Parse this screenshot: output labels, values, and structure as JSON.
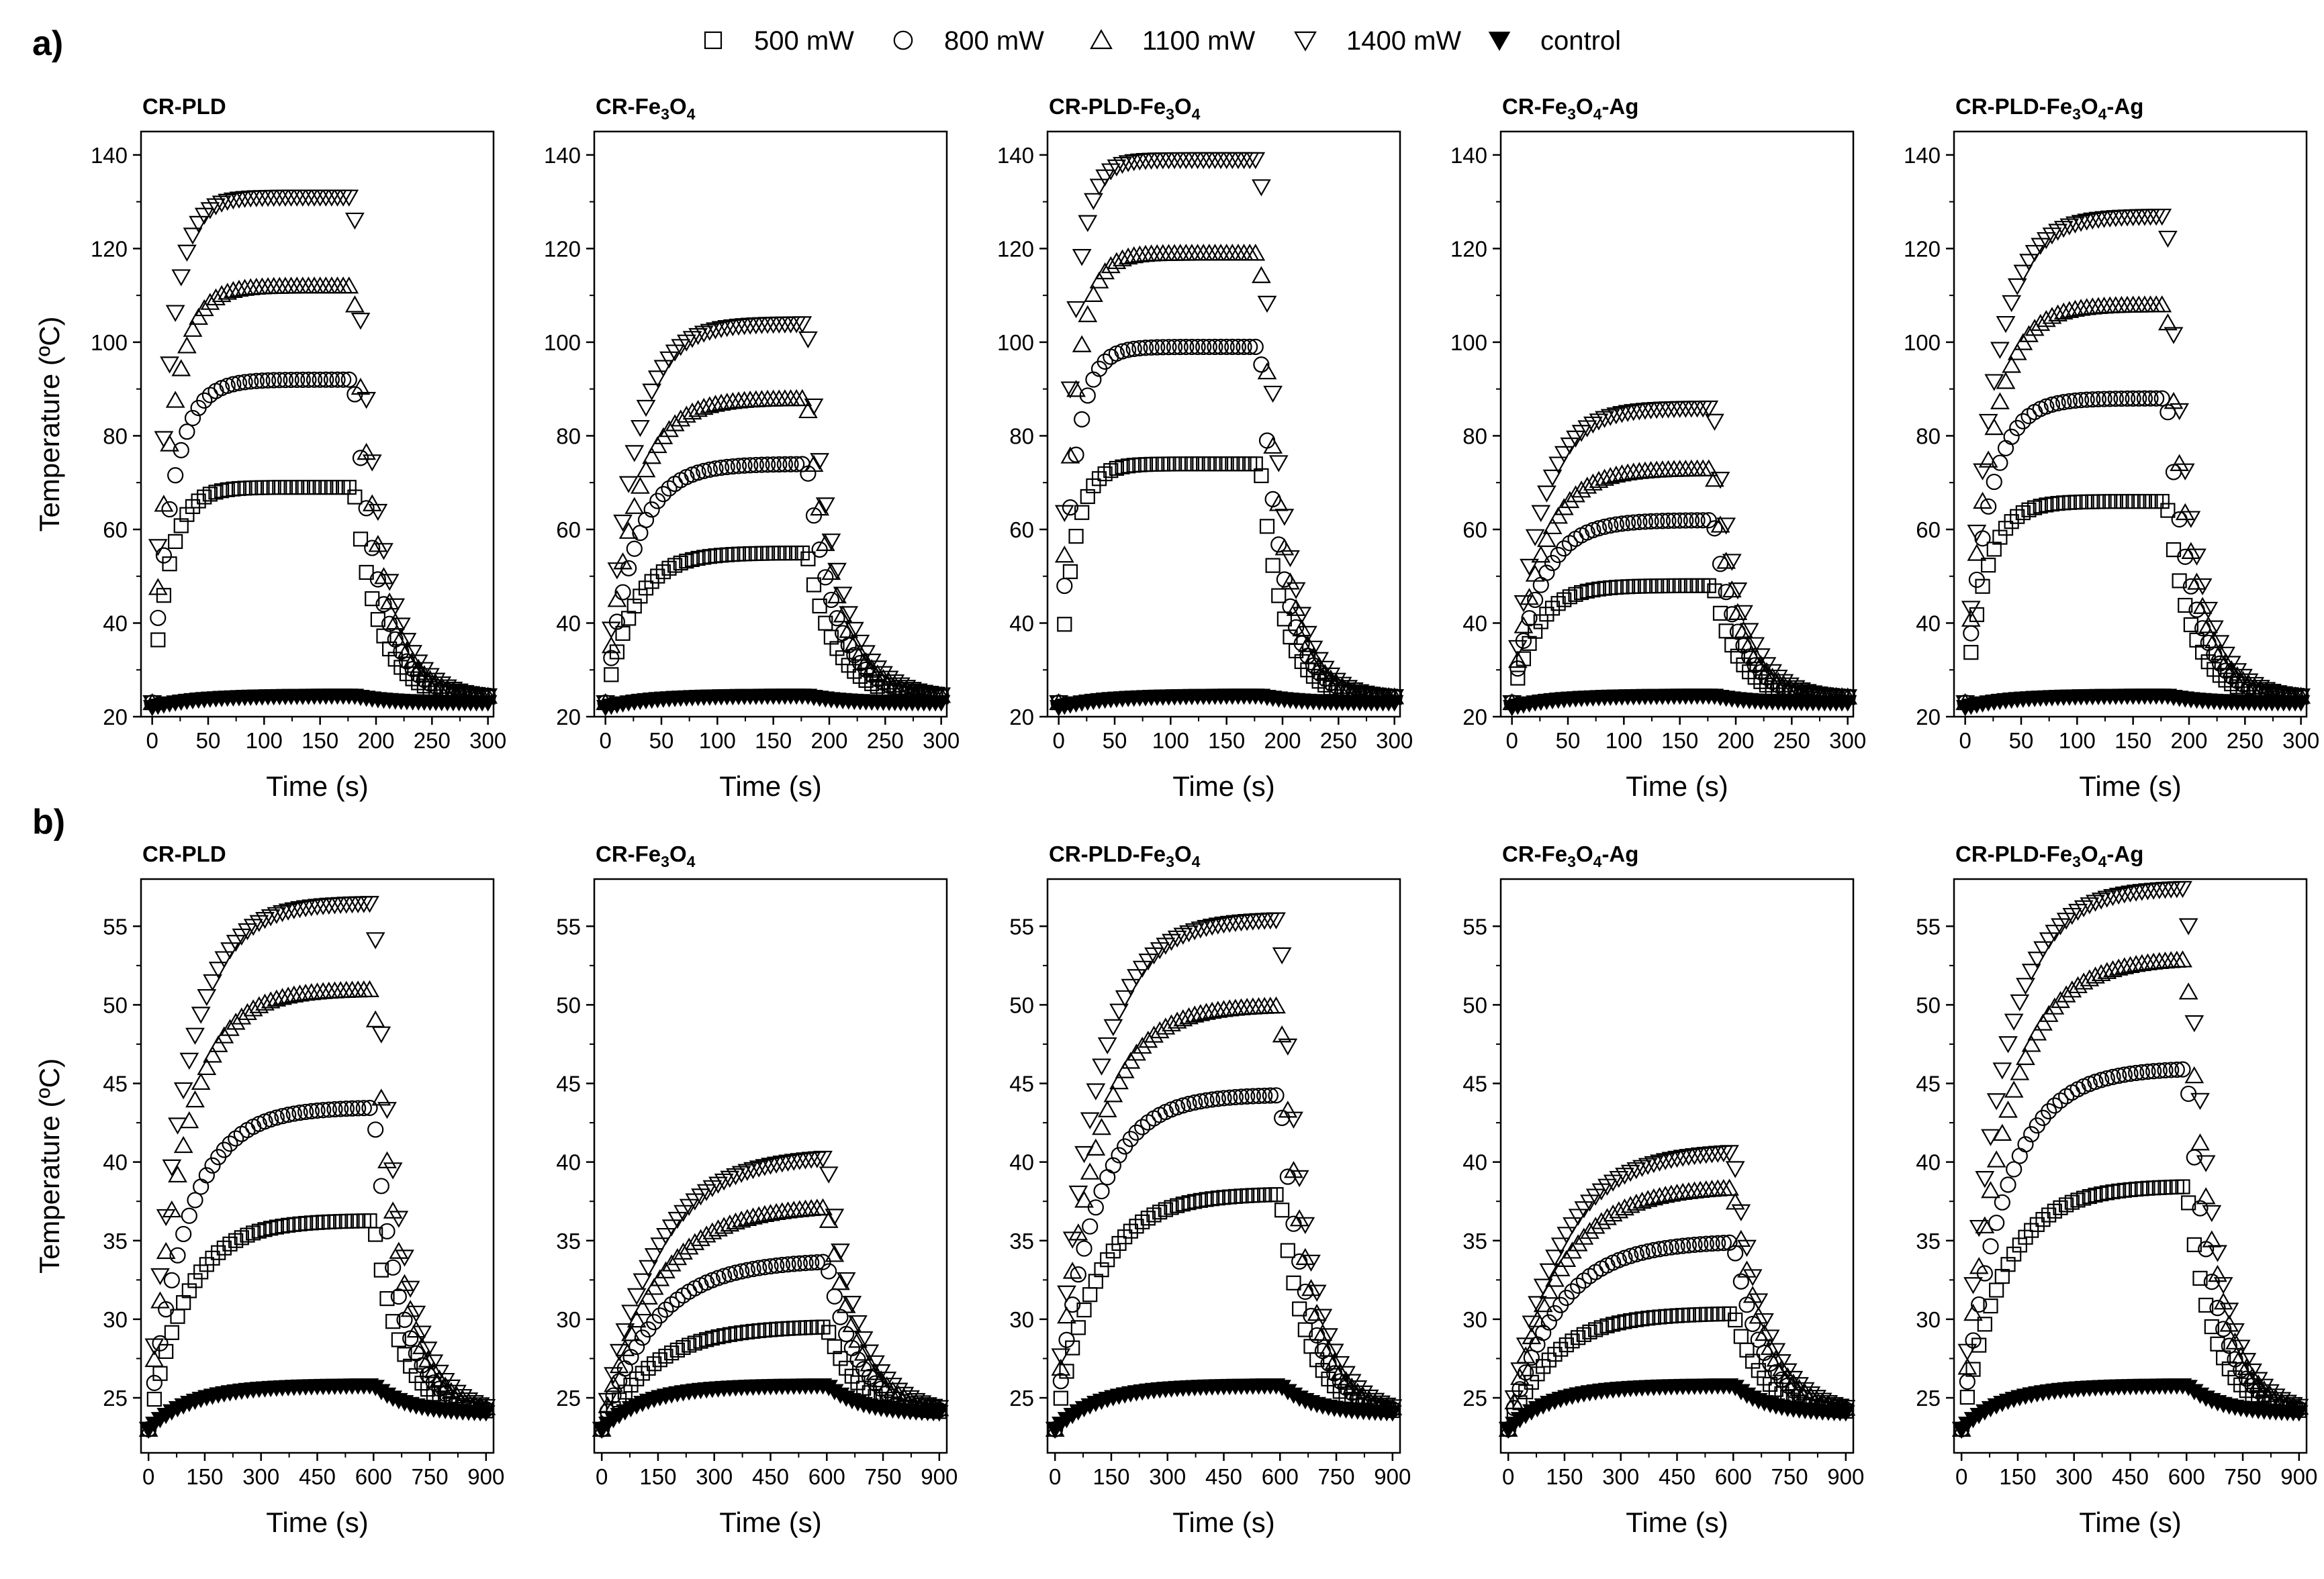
{
  "figure": {
    "panel_labels": [
      "a)",
      "b)"
    ],
    "legend": [
      {
        "symbol": "square-open",
        "label": "500 mW"
      },
      {
        "symbol": "circle-open",
        "label": "800 mW"
      },
      {
        "symbol": "triangle-up-open",
        "label": "1100 mW"
      },
      {
        "symbol": "triangle-down-open",
        "label": "1400 mW"
      },
      {
        "symbol": "triangle-down-filled",
        "label": "control"
      }
    ],
    "marker_color": "#000000",
    "background": "#ffffff"
  },
  "chart_data": [
    {
      "type": "scatter",
      "row": "a",
      "title": "CR-PLD",
      "title_sub": {
        "base": "CR-PLD",
        "parts": []
      },
      "xlabel": "Time (s)",
      "ylabel": "Temperature (ºC)",
      "xlim": [
        -10,
        305
      ],
      "ylim": [
        20,
        145
      ],
      "xticks": [
        0,
        50,
        100,
        150,
        200,
        250,
        300
      ],
      "yticks": [
        20,
        40,
        60,
        80,
        100,
        120,
        140
      ],
      "heating_end": 180,
      "t_max": 300,
      "series": [
        {
          "name": "500 mW",
          "start": 23,
          "plateau": 69,
          "tau": 15,
          "cool_tau": 22
        },
        {
          "name": "800 mW",
          "start": 23,
          "plateau": 92,
          "tau": 17,
          "cool_tau": 22
        },
        {
          "name": "1100 mW",
          "start": 23,
          "plateau": 112,
          "tau": 16,
          "cool_tau": 22
        },
        {
          "name": "1400 mW",
          "start": 23,
          "plateau": 131,
          "tau": 14,
          "cool_tau": 22
        },
        {
          "name": "control",
          "start": 22,
          "plateau": 24.5,
          "tau": 40,
          "cool_tau": 30
        }
      ]
    },
    {
      "type": "scatter",
      "row": "a",
      "title": "CR-Fe3O4",
      "title_sub": {
        "base": "CR-Fe",
        "parts": [
          {
            "sub": "3"
          },
          {
            "text": "O"
          },
          {
            "sub": "4"
          }
        ]
      },
      "xlabel": "Time (s)",
      "ylabel": "",
      "xlim": [
        -10,
        305
      ],
      "ylim": [
        20,
        145
      ],
      "xticks": [
        0,
        50,
        100,
        150,
        200,
        250,
        300
      ],
      "yticks": [
        20,
        40,
        60,
        80,
        100,
        120,
        140
      ],
      "heating_end": 180,
      "t_max": 300,
      "series": [
        {
          "name": "500 mW",
          "start": 23,
          "plateau": 55,
          "tau": 25,
          "cool_tau": 25
        },
        {
          "name": "800 mW",
          "start": 23,
          "plateau": 74,
          "tau": 25,
          "cool_tau": 25
        },
        {
          "name": "1100 mW",
          "start": 23,
          "plateau": 88,
          "tau": 25,
          "cool_tau": 25
        },
        {
          "name": "1400 mW",
          "start": 23,
          "plateau": 104,
          "tau": 24,
          "cool_tau": 25
        },
        {
          "name": "control",
          "start": 22,
          "plateau": 24.5,
          "tau": 40,
          "cool_tau": 30
        }
      ]
    },
    {
      "type": "scatter",
      "row": "a",
      "title": "CR-PLD-Fe3O4",
      "title_sub": {
        "base": "CR-PLD-Fe",
        "parts": [
          {
            "sub": "3"
          },
          {
            "text": "O"
          },
          {
            "sub": "4"
          }
        ]
      },
      "xlabel": "Time (s)",
      "ylabel": "",
      "xlim": [
        -10,
        305
      ],
      "ylim": [
        20,
        145
      ],
      "xticks": [
        0,
        50,
        100,
        150,
        200,
        250,
        300
      ],
      "yticks": [
        20,
        40,
        60,
        80,
        100,
        120,
        140
      ],
      "heating_end": 180,
      "t_max": 300,
      "series": [
        {
          "name": "500 mW",
          "start": 23,
          "plateau": 74,
          "tau": 13,
          "cool_tau": 20
        },
        {
          "name": "800 mW",
          "start": 23,
          "plateau": 99,
          "tau": 13,
          "cool_tau": 20
        },
        {
          "name": "1100 mW",
          "start": 23,
          "plateau": 119,
          "tau": 13,
          "cool_tau": 20
        },
        {
          "name": "1400 mW",
          "start": 23,
          "plateau": 139,
          "tau": 12,
          "cool_tau": 20
        },
        {
          "name": "control",
          "start": 22,
          "plateau": 24.5,
          "tau": 40,
          "cool_tau": 30
        }
      ]
    },
    {
      "type": "scatter",
      "row": "a",
      "title": "CR-Fe3O4-Ag",
      "title_sub": {
        "base": "CR-Fe",
        "parts": [
          {
            "sub": "3"
          },
          {
            "text": "O"
          },
          {
            "sub": "4"
          },
          {
            "text": "-Ag"
          }
        ]
      },
      "xlabel": "Time (s)",
      "ylabel": "",
      "xlim": [
        -10,
        305
      ],
      "ylim": [
        20,
        145
      ],
      "xticks": [
        0,
        50,
        100,
        150,
        200,
        250,
        300
      ],
      "yticks": [
        20,
        40,
        60,
        80,
        100,
        120,
        140
      ],
      "heating_end": 180,
      "t_max": 300,
      "series": [
        {
          "name": "500 mW",
          "start": 23,
          "plateau": 48,
          "tau": 22,
          "cool_tau": 22
        },
        {
          "name": "800 mW",
          "start": 23,
          "plateau": 62,
          "tau": 25,
          "cool_tau": 22
        },
        {
          "name": "1100 mW",
          "start": 23,
          "plateau": 73,
          "tau": 26,
          "cool_tau": 22
        },
        {
          "name": "1400 mW",
          "start": 23,
          "plateau": 86,
          "tau": 25,
          "cool_tau": 22
        },
        {
          "name": "control",
          "start": 22,
          "plateau": 24.5,
          "tau": 40,
          "cool_tau": 30
        }
      ]
    },
    {
      "type": "scatter",
      "row": "a",
      "title": "CR-PLD-Fe3O4-Ag",
      "title_sub": {
        "base": "CR-PLD-Fe",
        "parts": [
          {
            "sub": "3"
          },
          {
            "text": "O"
          },
          {
            "sub": "4"
          },
          {
            "text": "-Ag"
          }
        ]
      },
      "xlabel": "Time (s)",
      "ylabel": "",
      "xlim": [
        -10,
        305
      ],
      "ylim": [
        20,
        145
      ],
      "xticks": [
        0,
        50,
        100,
        150,
        200,
        250,
        300
      ],
      "yticks": [
        20,
        40,
        60,
        80,
        100,
        120,
        140
      ],
      "heating_end": 180,
      "t_max": 300,
      "series": [
        {
          "name": "500 mW",
          "start": 23,
          "plateau": 66,
          "tau": 18,
          "cool_tau": 22
        },
        {
          "name": "800 mW",
          "start": 23,
          "plateau": 88,
          "tau": 20,
          "cool_tau": 22
        },
        {
          "name": "1100 mW",
          "start": 23,
          "plateau": 108,
          "tau": 22,
          "cool_tau": 22
        },
        {
          "name": "1400 mW",
          "start": 23,
          "plateau": 127,
          "tau": 24,
          "cool_tau": 22
        },
        {
          "name": "control",
          "start": 22,
          "plateau": 24.5,
          "tau": 40,
          "cool_tau": 30
        }
      ]
    },
    {
      "type": "scatter",
      "row": "b",
      "title": "CR-PLD",
      "title_sub": {
        "base": "CR-PLD",
        "parts": []
      },
      "xlabel": "Time (s)",
      "ylabel": "Temperature (ºC)",
      "xlim": [
        -20,
        920
      ],
      "ylim": [
        21.5,
        58
      ],
      "xticks": [
        0,
        150,
        300,
        450,
        600,
        750,
        900
      ],
      "yticks": [
        25,
        30,
        35,
        40,
        45,
        50,
        55
      ],
      "heating_end": 600,
      "t_max": 900,
      "series": [
        {
          "name": "500 mW",
          "start": 23,
          "plateau": 36.3,
          "tau": 100,
          "cool_tau": 70
        },
        {
          "name": "800 mW",
          "start": 23,
          "plateau": 43.5,
          "tau": 100,
          "cool_tau": 70
        },
        {
          "name": "1100 mW",
          "start": 23,
          "plateau": 51,
          "tau": 90,
          "cool_tau": 70
        },
        {
          "name": "1400 mW",
          "start": 23,
          "plateau": 56.5,
          "tau": 90,
          "cool_tau": 70
        },
        {
          "name": "control",
          "start": 23,
          "plateau": 25.8,
          "tau": 120,
          "cool_tau": 90
        }
      ]
    },
    {
      "type": "scatter",
      "row": "b",
      "title": "CR-Fe3O4",
      "title_sub": {
        "base": "CR-Fe",
        "parts": [
          {
            "sub": "3"
          },
          {
            "text": "O"
          },
          {
            "sub": "4"
          }
        ]
      },
      "xlabel": "Time (s)",
      "ylabel": "",
      "xlim": [
        -20,
        920
      ],
      "ylim": [
        21.5,
        58
      ],
      "xticks": [
        0,
        150,
        300,
        450,
        600,
        750,
        900
      ],
      "yticks": [
        25,
        30,
        35,
        40,
        45,
        50,
        55
      ],
      "heating_end": 600,
      "t_max": 900,
      "series": [
        {
          "name": "500 mW",
          "start": 23,
          "plateau": 29.6,
          "tau": 140,
          "cool_tau": 80
        },
        {
          "name": "800 mW",
          "start": 23,
          "plateau": 33.8,
          "tau": 140,
          "cool_tau": 80
        },
        {
          "name": "1100 mW",
          "start": 23,
          "plateau": 37.3,
          "tau": 140,
          "cool_tau": 80
        },
        {
          "name": "1400 mW",
          "start": 23,
          "plateau": 40.5,
          "tau": 140,
          "cool_tau": 80
        },
        {
          "name": "control",
          "start": 23,
          "plateau": 25.8,
          "tau": 120,
          "cool_tau": 90
        }
      ]
    },
    {
      "type": "scatter",
      "row": "b",
      "title": "CR-PLD-Fe3O4",
      "title_sub": {
        "base": "CR-PLD-Fe",
        "parts": [
          {
            "sub": "3"
          },
          {
            "text": "O"
          },
          {
            "sub": "4"
          }
        ]
      },
      "xlabel": "Time (s)",
      "ylabel": "",
      "xlim": [
        -20,
        920
      ],
      "ylim": [
        21.5,
        58
      ],
      "xticks": [
        0,
        150,
        300,
        450,
        600,
        750,
        900
      ],
      "yticks": [
        25,
        30,
        35,
        40,
        45,
        50,
        55
      ],
      "heating_end": 600,
      "t_max": 900,
      "series": [
        {
          "name": "500 mW",
          "start": 23,
          "plateau": 38,
          "tau": 110,
          "cool_tau": 70
        },
        {
          "name": "800 mW",
          "start": 23,
          "plateau": 44.3,
          "tau": 100,
          "cool_tau": 70
        },
        {
          "name": "1100 mW",
          "start": 23,
          "plateau": 50,
          "tau": 100,
          "cool_tau": 70
        },
        {
          "name": "1400 mW",
          "start": 23,
          "plateau": 55.5,
          "tau": 100,
          "cool_tau": 70
        },
        {
          "name": "control",
          "start": 23,
          "plateau": 25.8,
          "tau": 120,
          "cool_tau": 90
        }
      ]
    },
    {
      "type": "scatter",
      "row": "b",
      "title": "CR-Fe3O4-Ag",
      "title_sub": {
        "base": "CR-Fe",
        "parts": [
          {
            "sub": "3"
          },
          {
            "text": "O"
          },
          {
            "sub": "4"
          },
          {
            "text": "-Ag"
          }
        ]
      },
      "xlabel": "Time (s)",
      "ylabel": "",
      "xlim": [
        -20,
        920
      ],
      "ylim": [
        21.5,
        58
      ],
      "xticks": [
        0,
        150,
        300,
        450,
        600,
        750,
        900
      ],
      "yticks": [
        25,
        30,
        35,
        40,
        45,
        50,
        55
      ],
      "heating_end": 600,
      "t_max": 900,
      "series": [
        {
          "name": "500 mW",
          "start": 23,
          "plateau": 30.4,
          "tau": 120,
          "cool_tau": 80
        },
        {
          "name": "800 mW",
          "start": 23,
          "plateau": 35,
          "tau": 130,
          "cool_tau": 80
        },
        {
          "name": "1100 mW",
          "start": 23,
          "plateau": 38.5,
          "tau": 130,
          "cool_tau": 80
        },
        {
          "name": "1400 mW",
          "start": 23,
          "plateau": 40.8,
          "tau": 130,
          "cool_tau": 80
        },
        {
          "name": "control",
          "start": 23,
          "plateau": 25.8,
          "tau": 120,
          "cool_tau": 90
        }
      ]
    },
    {
      "type": "scatter",
      "row": "b",
      "title": "CR-PLD-Fe3O4-Ag",
      "title_sub": {
        "base": "CR-PLD-Fe",
        "parts": [
          {
            "sub": "3"
          },
          {
            "text": "O"
          },
          {
            "sub": "4"
          },
          {
            "text": "-Ag"
          }
        ]
      },
      "xlabel": "Time (s)",
      "ylabel": "",
      "xlim": [
        -20,
        920
      ],
      "ylim": [
        21.5,
        58
      ],
      "xticks": [
        0,
        150,
        300,
        450,
        600,
        750,
        900
      ],
      "yticks": [
        25,
        30,
        35,
        40,
        45,
        50,
        55
      ],
      "heating_end": 600,
      "t_max": 900,
      "series": [
        {
          "name": "500 mW",
          "start": 23,
          "plateau": 38.5,
          "tau": 110,
          "cool_tau": 70
        },
        {
          "name": "800 mW",
          "start": 23,
          "plateau": 46,
          "tau": 110,
          "cool_tau": 70
        },
        {
          "name": "1100 mW",
          "start": 23,
          "plateau": 53,
          "tau": 110,
          "cool_tau": 70
        },
        {
          "name": "1400 mW",
          "start": 23,
          "plateau": 57.5,
          "tau": 100,
          "cool_tau": 70
        },
        {
          "name": "control",
          "start": 23,
          "plateau": 25.8,
          "tau": 120,
          "cool_tau": 90
        }
      ]
    }
  ]
}
